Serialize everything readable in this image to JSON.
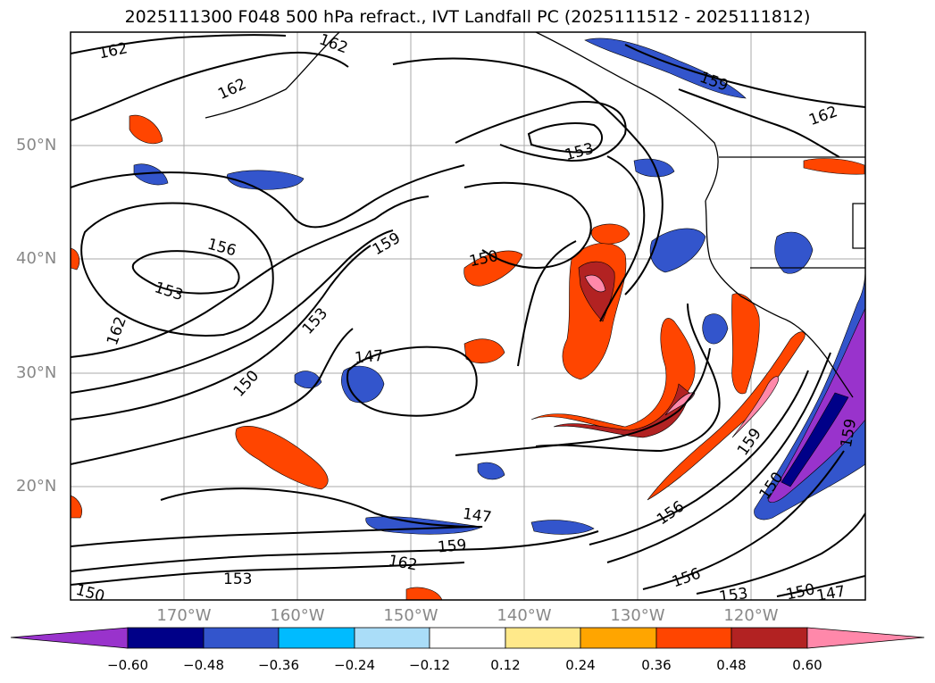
{
  "title": "2025111300 F048 500 hPa refract., IVT Landfall PC (2025111512 - 2025111812)",
  "lat_labels": [
    "50°N",
    "40°N",
    "30°N",
    "20°N"
  ],
  "lon_labels": [
    "170°W",
    "160°W",
    "150°W",
    "140°W",
    "130°W",
    "120°W"
  ],
  "contour_labels": [
    "162",
    "162",
    "162",
    "162",
    "156",
    "153",
    "162",
    "159",
    "153",
    "159",
    "150",
    "153",
    "150",
    "147",
    "159",
    "156",
    "150",
    "159",
    "147",
    "159",
    "162",
    "156",
    "153",
    "150",
    "147",
    "150",
    "153"
  ],
  "colorbar": {
    "ticks": [
      "−0.60",
      "−0.48",
      "−0.36",
      "−0.24",
      "−0.12",
      "0.12",
      "0.24",
      "0.36",
      "0.48",
      "0.60"
    ],
    "colors": [
      "#9933cc",
      "#000088",
      "#3355cc",
      "#00bbff",
      "#aaddf8",
      "#ffffff",
      "#ffe98a",
      "#ffa500",
      "#ff4500",
      "#b22222",
      "#ff88aa"
    ]
  }
}
